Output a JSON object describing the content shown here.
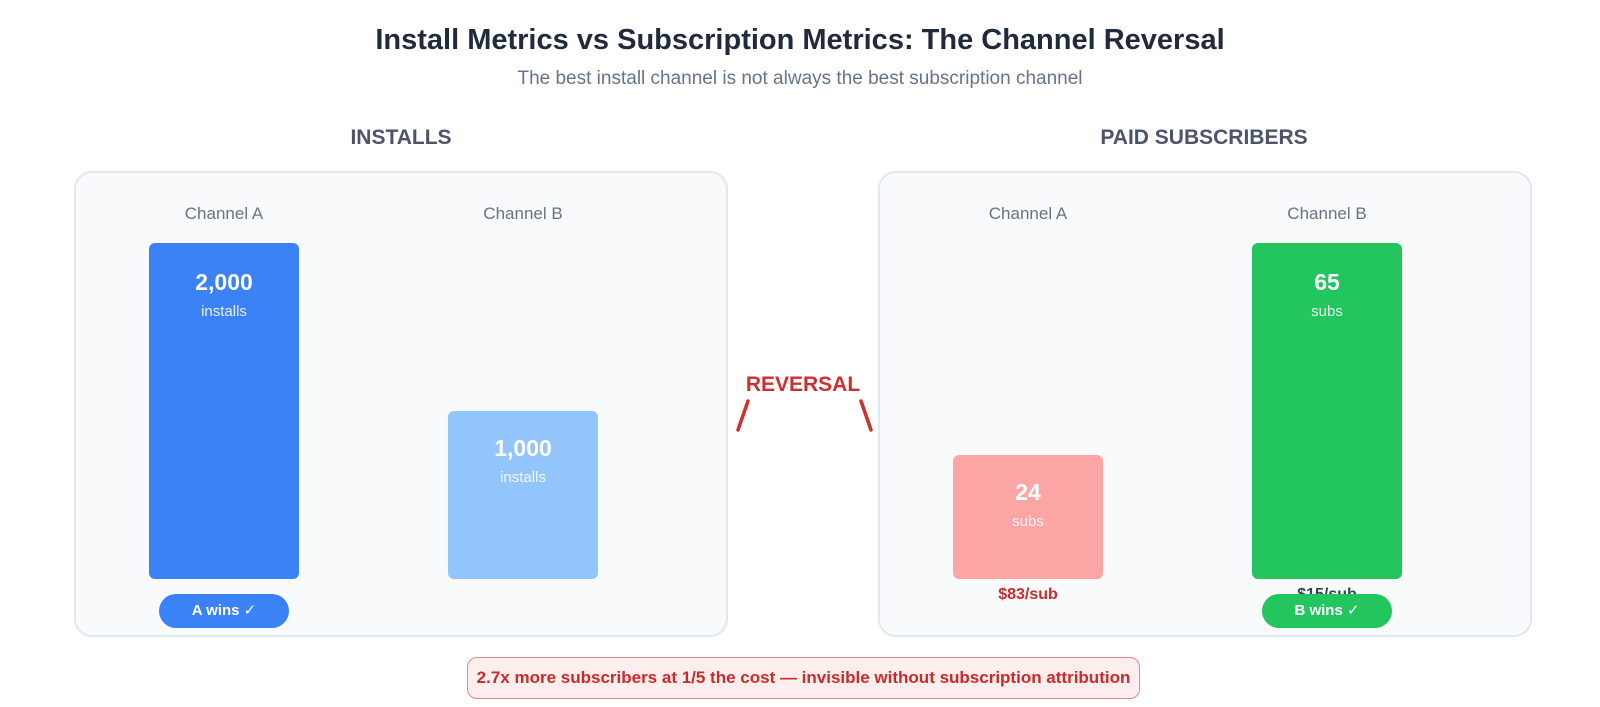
{
  "title": "Install Metrics vs Subscription Metrics: The Channel Reversal",
  "subtitle": "The best install channel is not always the best subscription channel",
  "reversal_label": "REVERSAL",
  "callout": "2.7x more subscribers at 1/5 the cost — invisible without subscription attribution",
  "colors": {
    "installs_a": "#3b82f6",
    "installs_b": "#93c5fd",
    "subs_a": "#fca5a5",
    "subs_b": "#22c55e",
    "reversal": "#cf2f2f"
  },
  "chart_data": [
    {
      "type": "bar",
      "title": "INSTALLS",
      "categories": [
        "Channel A",
        "Channel B"
      ],
      "values": [
        2000,
        1000
      ],
      "value_labels": [
        "2,000",
        "1,000"
      ],
      "unit": "installs",
      "ylim": [
        0,
        2000
      ],
      "grid": false,
      "winner_badge": "A wins ✓",
      "winner_index": 0
    },
    {
      "type": "bar",
      "title": "PAID SUBSCRIBERS",
      "categories": [
        "Channel A",
        "Channel B"
      ],
      "values": [
        24,
        65
      ],
      "value_labels": [
        "24",
        "65"
      ],
      "unit": "subs",
      "ylim": [
        0,
        65
      ],
      "grid": false,
      "cost_per_sub": [
        "$83/sub",
        "$15/sub"
      ],
      "winner_badge": "B wins ✓",
      "winner_index": 1
    }
  ]
}
